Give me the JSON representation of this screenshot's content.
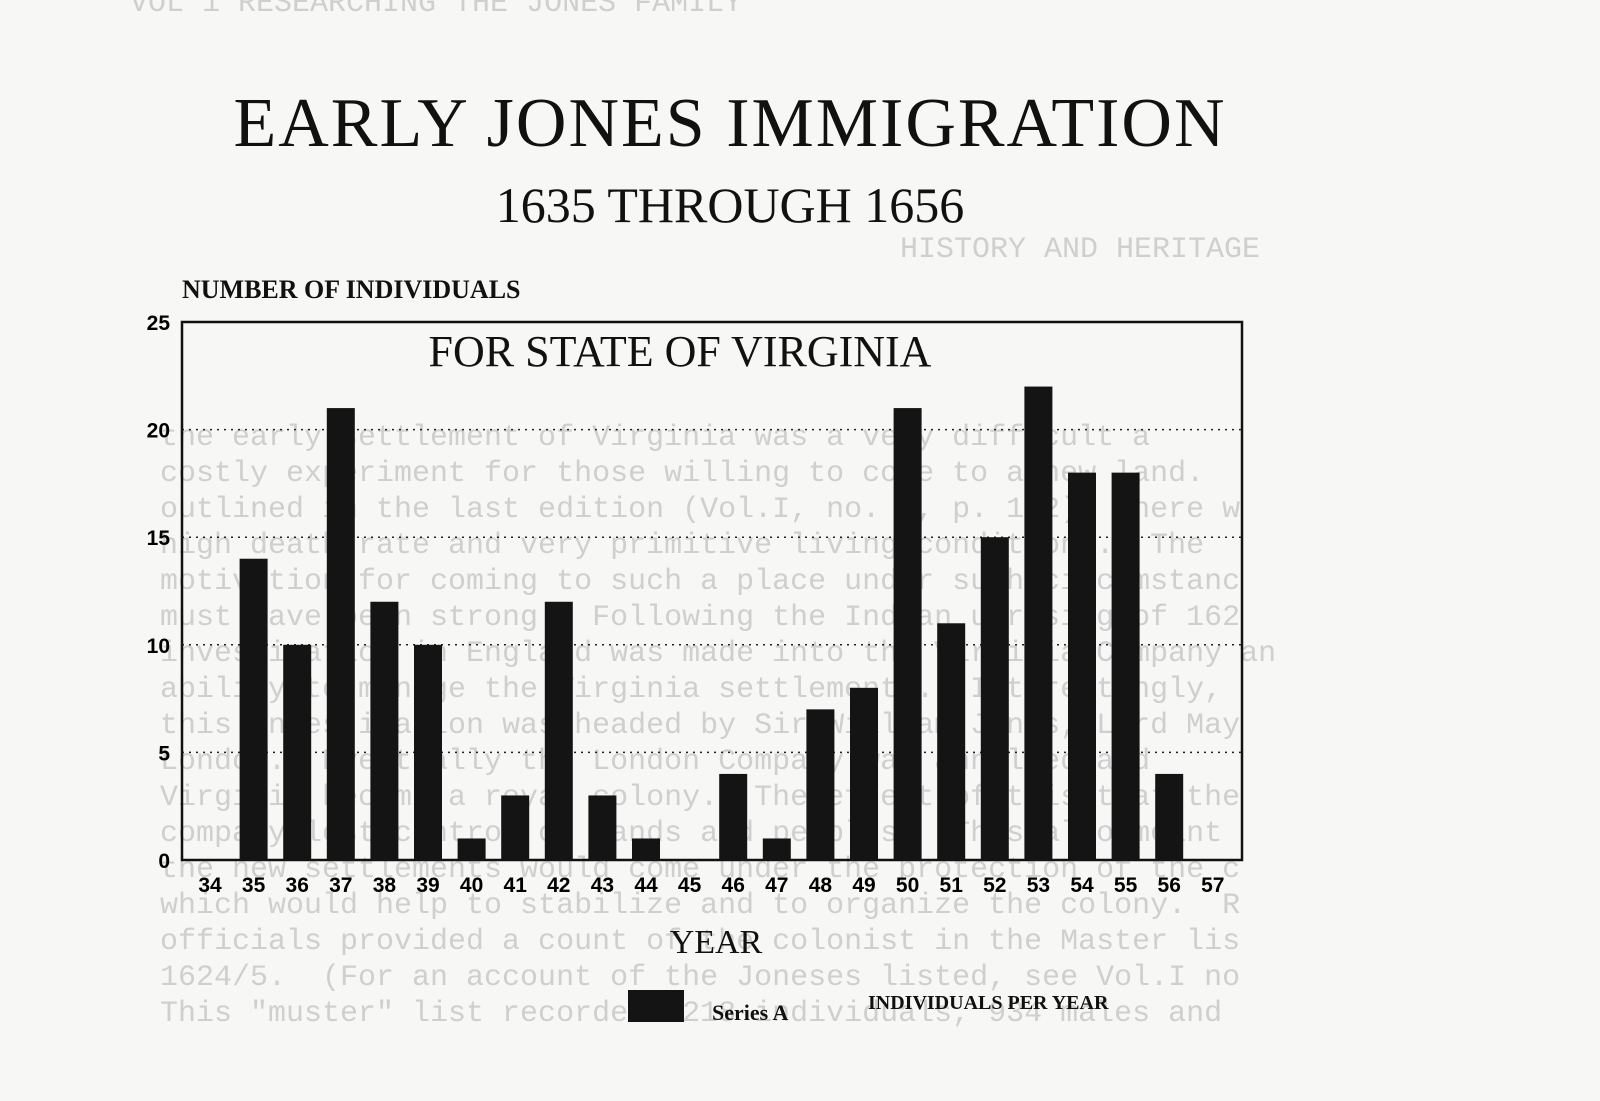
{
  "header": {
    "title": "EARLY JONES IMMIGRATION",
    "subtitle": "1635 THROUGH 1656"
  },
  "chart_data": {
    "type": "bar",
    "title": "FOR STATE OF VIRGINIA",
    "xlabel": "YEAR",
    "ylabel": "NUMBER OF INDIVIDUALS",
    "ylim": [
      0,
      25
    ],
    "yticks": [
      0,
      5,
      10,
      15,
      20,
      25
    ],
    "grid": true,
    "legend_position": "bottom",
    "categories": [
      "34",
      "35",
      "36",
      "37",
      "38",
      "39",
      "40",
      "41",
      "42",
      "43",
      "44",
      "45",
      "46",
      "47",
      "48",
      "49",
      "50",
      "51",
      "52",
      "53",
      "54",
      "55",
      "56",
      "57"
    ],
    "series": [
      {
        "name": "Series A",
        "label": "INDIVIDUALS PER YEAR",
        "color": "#141414",
        "values": [
          0,
          14,
          10,
          21,
          12,
          10,
          1,
          3,
          12,
          3,
          1,
          0,
          4,
          1,
          7,
          8,
          21,
          11,
          15,
          22,
          18,
          18,
          4,
          0
        ]
      }
    ]
  }
}
